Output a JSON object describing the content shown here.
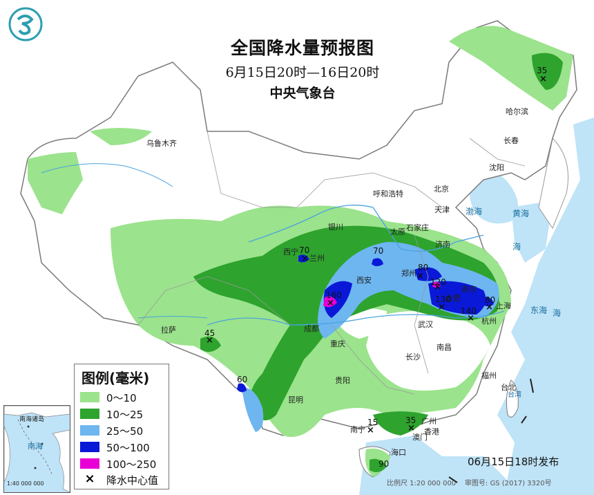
{
  "title": "全国降水量预报图",
  "period": "6月15日20时—16日20时",
  "issuer": "中央气象台",
  "legend": {
    "title": "图例(毫米)",
    "items": [
      {
        "label": "0～10",
        "color": "#9be38c"
      },
      {
        "label": "10～25",
        "color": "#2ea32e"
      },
      {
        "label": "25～50",
        "color": "#6db6f0"
      },
      {
        "label": "50～100",
        "color": "#0a18d8"
      },
      {
        "label": "100～250",
        "color": "#e800d6"
      },
      {
        "label": "降水中心值",
        "color": "#000000"
      }
    ]
  },
  "cities": [
    "乌鲁木齐",
    "哈尔滨",
    "长春",
    "沈阳",
    "呼和浩特",
    "北京",
    "天津",
    "银川",
    "太原",
    "石家庄",
    "济南",
    "西宁",
    "兰州",
    "郑州",
    "西安",
    "南京",
    "合肥",
    "上海",
    "杭州",
    "成都",
    "武汉",
    "重庆",
    "拉萨",
    "南昌",
    "长沙",
    "贵阳",
    "福州",
    "台北",
    "昆明",
    "南宁",
    "广州",
    "澳门",
    "香港",
    "海口"
  ],
  "seas": [
    "渤海",
    "黄海",
    "东海",
    "海",
    "海",
    "台湾"
  ],
  "inset": {
    "label_top": "南海诸岛",
    "label_sea": "南海",
    "scale": "1:40 000 000"
  },
  "rain_centers": [
    "35",
    "70",
    "70",
    "80",
    "120",
    "160",
    "130",
    "140",
    "80",
    "45",
    "60",
    "15",
    "35",
    "90"
  ],
  "publish": "06月15日18时发布",
  "footer": {
    "scale": "比例尺 1:20 000 000",
    "review": "审图号: GS (2017) 3320号"
  },
  "colors": {
    "water": "#bfe3f7",
    "land": "#ffffff",
    "border": "#7a7a7a",
    "river": "#4aa3df"
  }
}
